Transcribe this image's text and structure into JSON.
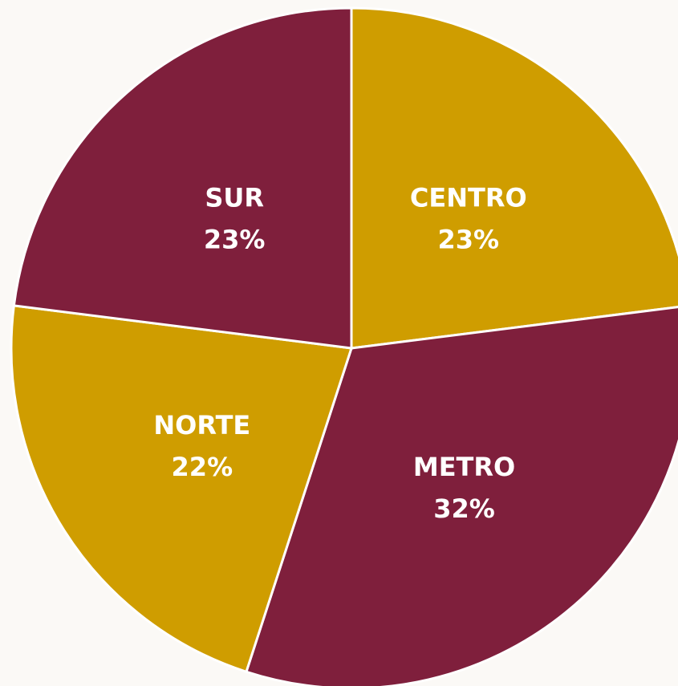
{
  "chart_data": {
    "type": "pie",
    "categories": [
      "CENTRO",
      "METRO",
      "NORTE",
      "SUR"
    ],
    "values": [
      23,
      32,
      22,
      23
    ],
    "value_labels": [
      "23%",
      "32%",
      "22%",
      "23%"
    ],
    "colors": [
      "#cf9d00",
      "#7f1f3c",
      "#cf9d00",
      "#7f1f3c"
    ]
  }
}
